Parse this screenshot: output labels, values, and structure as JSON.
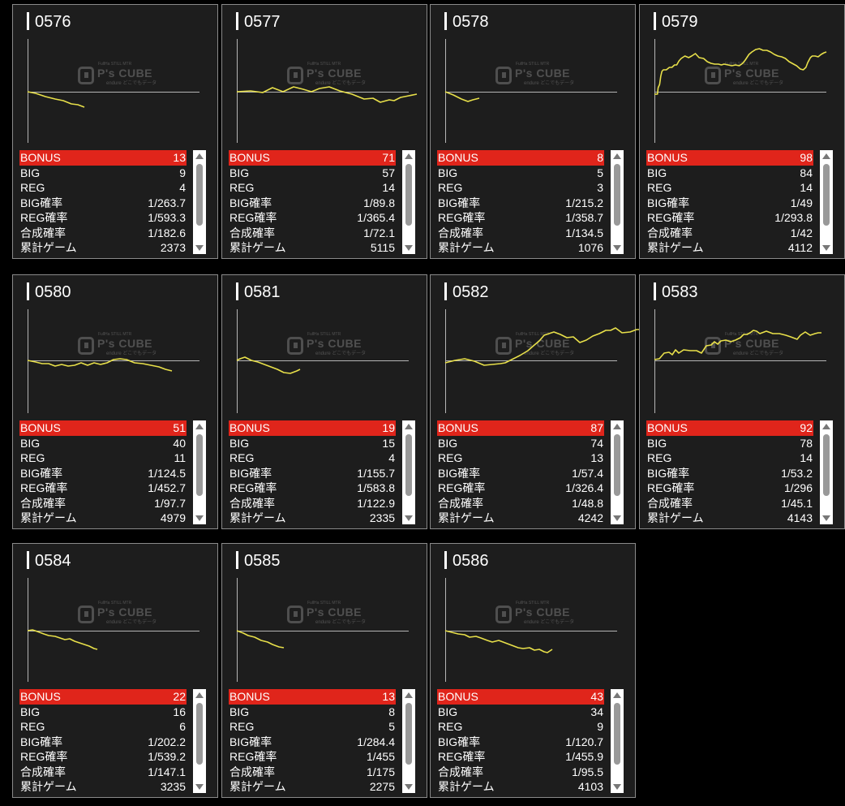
{
  "labels": {
    "bonus": "BONUS",
    "big": "BIG",
    "reg": "REG",
    "big_rate": "BIG確率",
    "reg_rate": "REG確率",
    "total_rate": "合成確率",
    "games": "累計ゲーム"
  },
  "watermark": {
    "brand": "P's CUBE",
    "top": "FullHa STILL MTR",
    "bottom": "endure どこでもデータ"
  },
  "colors": {
    "bonus_bar": "#e0251b",
    "graph_line": "#e8e04a",
    "panel_bg": "#1d1d1d"
  },
  "machines": [
    {
      "number": "0576",
      "bonus": "13",
      "big": "9",
      "reg": "4",
      "big_rate": "1/263.7",
      "reg_rate": "1/593.3",
      "total_rate": "1/182.6",
      "games": "2373"
    },
    {
      "number": "0577",
      "bonus": "71",
      "big": "57",
      "reg": "14",
      "big_rate": "1/89.8",
      "reg_rate": "1/365.4",
      "total_rate": "1/72.1",
      "games": "5115"
    },
    {
      "number": "0578",
      "bonus": "8",
      "big": "5",
      "reg": "3",
      "big_rate": "1/215.2",
      "reg_rate": "1/358.7",
      "total_rate": "1/134.5",
      "games": "1076"
    },
    {
      "number": "0579",
      "bonus": "98",
      "big": "84",
      "reg": "14",
      "big_rate": "1/49",
      "reg_rate": "1/293.8",
      "total_rate": "1/42",
      "games": "4112"
    },
    {
      "number": "0580",
      "bonus": "51",
      "big": "40",
      "reg": "11",
      "big_rate": "1/124.5",
      "reg_rate": "1/452.7",
      "total_rate": "1/97.7",
      "games": "4979"
    },
    {
      "number": "0581",
      "bonus": "19",
      "big": "15",
      "reg": "4",
      "big_rate": "1/155.7",
      "reg_rate": "1/583.8",
      "total_rate": "1/122.9",
      "games": "2335"
    },
    {
      "number": "0582",
      "bonus": "87",
      "big": "74",
      "reg": "13",
      "big_rate": "1/57.4",
      "reg_rate": "1/326.4",
      "total_rate": "1/48.8",
      "games": "4242"
    },
    {
      "number": "0583",
      "bonus": "92",
      "big": "78",
      "reg": "14",
      "big_rate": "1/53.2",
      "reg_rate": "1/296",
      "total_rate": "1/45.1",
      "games": "4143"
    },
    {
      "number": "0584",
      "bonus": "22",
      "big": "16",
      "reg": "6",
      "big_rate": "1/202.2",
      "reg_rate": "1/539.2",
      "total_rate": "1/147.1",
      "games": "3235"
    },
    {
      "number": "0585",
      "bonus": "13",
      "big": "8",
      "reg": "5",
      "big_rate": "1/284.4",
      "reg_rate": "1/455",
      "total_rate": "1/175",
      "games": "2275"
    },
    {
      "number": "0586",
      "bonus": "43",
      "big": "34",
      "reg": "9",
      "big_rate": "1/120.7",
      "reg_rate": "1/455.9",
      "total_rate": "1/95.5",
      "games": "4103"
    }
  ]
}
